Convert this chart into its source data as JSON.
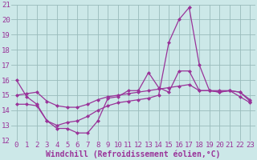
{
  "x": [
    0,
    1,
    2,
    3,
    4,
    5,
    6,
    7,
    8,
    9,
    10,
    11,
    12,
    13,
    14,
    15,
    16,
    17,
    18,
    19,
    20,
    21,
    22,
    23
  ],
  "line1": [
    16.0,
    14.9,
    14.4,
    13.3,
    12.8,
    12.8,
    12.5,
    12.5,
    13.3,
    14.8,
    14.9,
    15.3,
    15.3,
    16.5,
    15.5,
    15.2,
    16.6,
    16.6,
    15.3,
    15.3,
    15.2,
    15.3,
    14.9,
    14.5
  ],
  "line2": [
    15.0,
    15.1,
    15.2,
    14.6,
    14.3,
    14.2,
    14.2,
    14.4,
    14.7,
    14.9,
    15.0,
    15.1,
    15.2,
    15.3,
    15.4,
    15.5,
    15.6,
    15.7,
    15.3,
    15.3,
    15.2,
    15.3,
    15.2,
    14.7
  ],
  "line3": [
    14.4,
    14.4,
    14.3,
    13.3,
    13.0,
    13.2,
    13.3,
    13.6,
    14.0,
    14.3,
    14.5,
    14.6,
    14.7,
    14.8,
    15.0,
    18.5,
    20.0,
    20.8,
    17.0,
    15.3,
    15.3,
    15.3,
    15.2,
    14.6
  ],
  "ylim": [
    12,
    21
  ],
  "ylim_top": 21,
  "xlim_left": -0.5,
  "xlim_right": 23.5,
  "yticks": [
    12,
    13,
    14,
    15,
    16,
    17,
    18,
    19,
    20,
    21
  ],
  "xticks": [
    0,
    1,
    2,
    3,
    4,
    5,
    6,
    7,
    8,
    9,
    10,
    11,
    12,
    13,
    14,
    15,
    16,
    17,
    18,
    19,
    20,
    21,
    22,
    23
  ],
  "line_color": "#993399",
  "bg_color": "#cce8e8",
  "grid_color": "#99bbbb",
  "xlabel": "Windchill (Refroidissement éolien,°C)",
  "marker": "D",
  "marker_size": 2.5,
  "tick_fontsize": 6.5,
  "xlabel_fontsize": 7.0
}
